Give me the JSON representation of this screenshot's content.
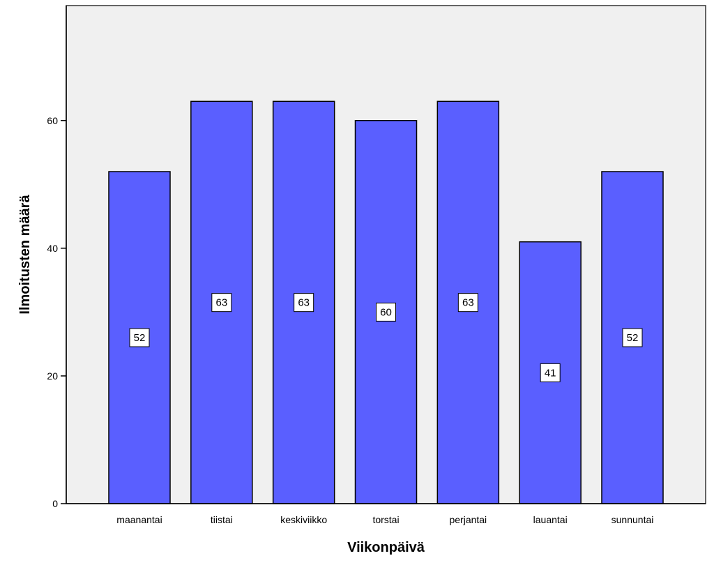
{
  "chart_data": {
    "type": "bar",
    "categories": [
      "maanantai",
      "tiistai",
      "keskiviikko",
      "torstai",
      "perjantai",
      "lauantai",
      "sunnuntai"
    ],
    "values": [
      52,
      63,
      63,
      60,
      63,
      41,
      52
    ],
    "data_labels": [
      "52",
      "63",
      "63",
      "60",
      "63",
      "41",
      "52"
    ],
    "xlabel": "Viikonpäivä",
    "ylabel": "Ilmoitusten määrä",
    "ylim": [
      0,
      78
    ],
    "yticks": [
      0,
      20,
      40,
      60
    ],
    "ytick_labels": [
      "0",
      "20",
      "40",
      "60"
    ],
    "grid": false,
    "legend": "none",
    "colors": {
      "bar_fill": "#5a5fff",
      "bar_stroke": "#000000",
      "plot_background": "#f0f0f0",
      "frame": "#333333"
    }
  }
}
